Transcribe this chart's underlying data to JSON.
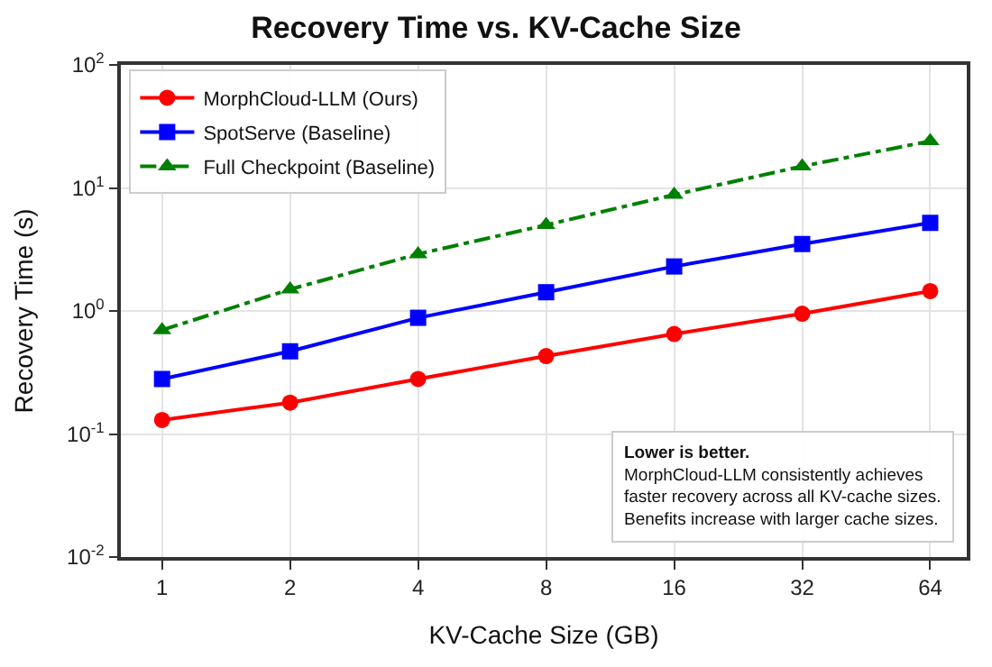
{
  "chart_data": {
    "type": "line",
    "title": "Recovery Time vs. KV-Cache Size",
    "xlabel": "KV-Cache Size (GB)",
    "ylabel": "Recovery Time (s)",
    "x": [
      1,
      2,
      4,
      8,
      16,
      32,
      64
    ],
    "series": [
      {
        "name": "MorphCloud-LLM (Ours)",
        "color": "#ff0000",
        "marker": "circle",
        "line_style": "solid",
        "values": [
          0.13,
          0.18,
          0.28,
          0.43,
          0.65,
          0.95,
          1.45
        ]
      },
      {
        "name": "SpotServe (Baseline)",
        "color": "#0000ff",
        "marker": "square",
        "line_style": "solid",
        "values": [
          0.28,
          0.47,
          0.88,
          1.42,
          2.3,
          3.5,
          5.2
        ]
      },
      {
        "name": "Full Checkpoint (Baseline)",
        "color": "#008000",
        "marker": "triangle",
        "line_style": "dashdot",
        "values": [
          0.7,
          1.5,
          2.9,
          5.0,
          8.8,
          15,
          24
        ]
      }
    ],
    "log": "xy",
    "xlim": [
      0.8,
      78
    ],
    "xticks": [
      1,
      2,
      4,
      8,
      16,
      32,
      64
    ],
    "ylim": [
      0.01,
      100
    ],
    "yticks": [
      {
        "value": 0.01,
        "label": "10$^{-2}$"
      },
      {
        "value": 0.1,
        "label": "10$^{-1}$"
      },
      {
        "value": 1,
        "label": "10$^{0}$"
      },
      {
        "value": 10,
        "label": "10$^{1}$"
      },
      {
        "value": 100,
        "label": "10$^{2}$"
      }
    ],
    "grid": true,
    "legend": "top left",
    "annotations": [
      "Lower is better.",
      "MorphCloud-LLM consistently achieves faster recovery across all KV-cache sizes.",
      "Benefits increase with larger cache sizes."
    ]
  }
}
